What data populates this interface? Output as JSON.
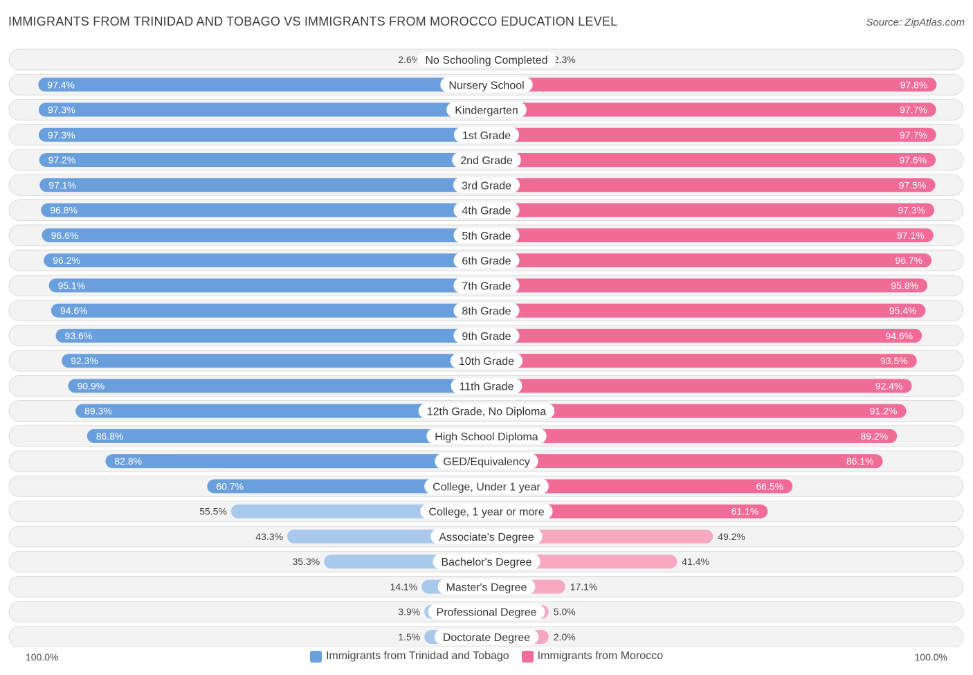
{
  "header": {
    "title": "IMMIGRANTS FROM TRINIDAD AND TOBAGO VS IMMIGRANTS FROM MOROCCO EDUCATION LEVEL",
    "source": "Source: ZipAtlas.com"
  },
  "colors": {
    "left_strong": "#6a9fdd",
    "left_light": "#a8c8ec",
    "right_strong": "#f06b95",
    "right_light": "#f6a8c1"
  },
  "chart_data": {
    "type": "bar",
    "orientation": "horizontal-diverging",
    "title": "IMMIGRANTS FROM TRINIDAD AND TOBAGO VS IMMIGRANTS FROM MOROCCO EDUCATION LEVEL",
    "xlim": [
      0,
      100
    ],
    "axis_left_label": "100.0%",
    "axis_right_label": "100.0%",
    "legend_position": "bottom-center",
    "categories": [
      "No Schooling Completed",
      "Nursery School",
      "Kindergarten",
      "1st Grade",
      "2nd Grade",
      "3rd Grade",
      "4th Grade",
      "5th Grade",
      "6th Grade",
      "7th Grade",
      "8th Grade",
      "9th Grade",
      "10th Grade",
      "11th Grade",
      "12th Grade, No Diploma",
      "High School Diploma",
      "GED/Equivalency",
      "College, Under 1 year",
      "College, 1 year or more",
      "Associate's Degree",
      "Bachelor's Degree",
      "Master's Degree",
      "Professional Degree",
      "Doctorate Degree"
    ],
    "series": [
      {
        "name": "Immigrants from Trinidad and Tobago",
        "values": [
          2.6,
          97.4,
          97.3,
          97.3,
          97.2,
          97.1,
          96.8,
          96.6,
          96.2,
          95.1,
          94.6,
          93.6,
          92.3,
          90.9,
          89.3,
          86.8,
          82.8,
          60.7,
          55.5,
          43.3,
          35.3,
          14.1,
          3.9,
          1.5
        ],
        "labels": [
          "2.6%",
          "97.4%",
          "97.3%",
          "97.3%",
          "97.2%",
          "97.1%",
          "96.8%",
          "96.6%",
          "96.2%",
          "95.1%",
          "94.6%",
          "93.6%",
          "92.3%",
          "90.9%",
          "89.3%",
          "86.8%",
          "82.8%",
          "60.7%",
          "55.5%",
          "43.3%",
          "35.3%",
          "14.1%",
          "3.9%",
          "1.5%"
        ]
      },
      {
        "name": "Immigrants from Morocco",
        "values": [
          2.3,
          97.8,
          97.7,
          97.7,
          97.6,
          97.5,
          97.3,
          97.1,
          96.7,
          95.8,
          95.4,
          94.6,
          93.5,
          92.4,
          91.2,
          89.2,
          86.1,
          66.5,
          61.1,
          49.2,
          41.4,
          17.1,
          5.0,
          2.0
        ],
        "labels": [
          "2.3%",
          "97.8%",
          "97.7%",
          "97.7%",
          "97.6%",
          "97.5%",
          "97.3%",
          "97.1%",
          "96.7%",
          "95.8%",
          "95.4%",
          "94.6%",
          "93.5%",
          "92.4%",
          "91.2%",
          "89.2%",
          "86.1%",
          "66.5%",
          "61.1%",
          "49.2%",
          "41.4%",
          "17.1%",
          "5.0%",
          "2.0%"
        ]
      }
    ]
  }
}
